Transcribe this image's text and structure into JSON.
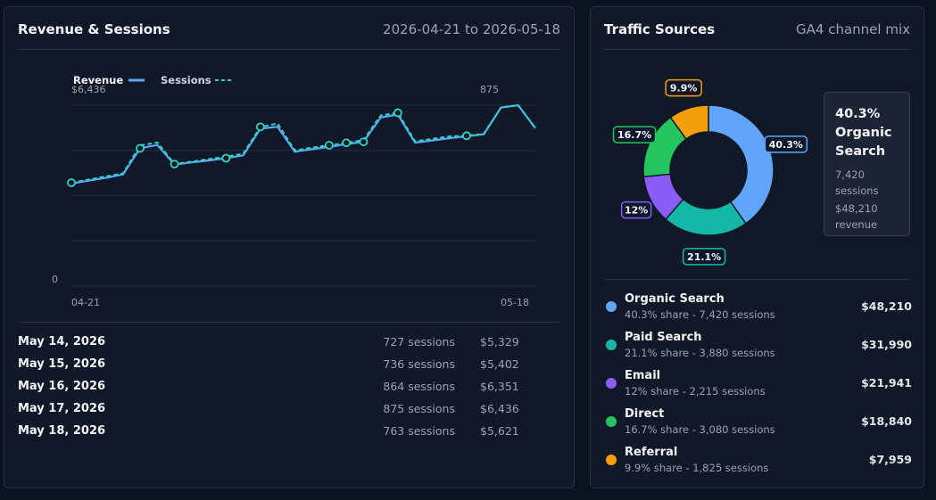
{
  "revenue_panel": {
    "title": "Revenue & Sessions",
    "date_range": "2026-04-21 to 2026-05-18",
    "legend": {
      "revenue": "Revenue",
      "sessions": "Sessions"
    },
    "rows": [
      {
        "date": "May 14, 2026",
        "sessions": "727 sessions",
        "revenue": "$5,329"
      },
      {
        "date": "May 15, 2026",
        "sessions": "736 sessions",
        "revenue": "$5,402"
      },
      {
        "date": "May 16, 2026",
        "sessions": "864 sessions",
        "revenue": "$6,351"
      },
      {
        "date": "May 17, 2026",
        "sessions": "875 sessions",
        "revenue": "$6,436"
      },
      {
        "date": "May 18, 2026",
        "sessions": "763 sessions",
        "revenue": "$5,621"
      }
    ]
  },
  "chart_data": {
    "type": "line",
    "x": [
      "04-21",
      "04-22",
      "04-23",
      "04-24",
      "04-25",
      "04-26",
      "04-27",
      "04-28",
      "04-29",
      "04-30",
      "05-01",
      "05-02",
      "05-03",
      "05-04",
      "05-05",
      "05-06",
      "05-07",
      "05-08",
      "05-09",
      "05-10",
      "05-11",
      "05-12",
      "05-13",
      "05-14",
      "05-15",
      "05-16",
      "05-17",
      "05-18"
    ],
    "x_tick_labels": [
      "04-21",
      "05-18"
    ],
    "y_tick_labels": [
      "0"
    ],
    "revenue_max_label": "$6,436",
    "sessions_max_label": "875",
    "series": [
      {
        "name": "Revenue",
        "color": "#60a5fa",
        "style": "solid",
        "values": [
          3650,
          3750,
          3850,
          3970,
          4900,
          5020,
          4320,
          4400,
          4470,
          4550,
          4650,
          5600,
          5670,
          4780,
          4870,
          4950,
          5050,
          5130,
          6000,
          6100,
          5100,
          5180,
          5260,
          5329,
          5402,
          6351,
          6436,
          5621
        ]
      },
      {
        "name": "Sessions",
        "color": "#2dd4bf",
        "style": "dashed",
        "values": [
          500,
          515,
          530,
          545,
          680,
          695,
          590,
          602,
          614,
          626,
          640,
          770,
          786,
          656,
          670,
          681,
          693,
          706,
          826,
          838,
          700,
          712,
          724,
          727,
          736,
          864,
          875,
          763
        ]
      }
    ],
    "markers": {
      "Sessions": [
        0,
        6,
        11,
        15,
        16,
        19,
        23
      ],
      "Revenue": [
        4,
        9,
        17
      ]
    },
    "grid": true,
    "gridlines": 5
  },
  "traffic_panel": {
    "title": "Traffic Sources",
    "subtitle": "GA4 channel mix",
    "tooltip": {
      "title": "40.3% Organic Search",
      "sessions": "7,420 sessions",
      "revenue": "$48,210 revenue"
    },
    "sources": [
      {
        "name": "Organic Search",
        "pct": 40.3,
        "label": "40.3%",
        "meta": "40.3% share - 7,420 sessions",
        "revenue": "$48,210",
        "color": "#60a5fa"
      },
      {
        "name": "Paid Search",
        "pct": 21.1,
        "label": "21.1%",
        "meta": "21.1% share - 3,880 sessions",
        "revenue": "$31,990",
        "color": "#14b8a6"
      },
      {
        "name": "Email",
        "pct": 12,
        "label": "12%",
        "meta": "12% share - 2,215 sessions",
        "revenue": "$21,941",
        "color": "#8b5cf6"
      },
      {
        "name": "Direct",
        "pct": 16.7,
        "label": "16.7%",
        "meta": "16.7% share - 3,080 sessions",
        "revenue": "$18,840",
        "color": "#22c55e"
      },
      {
        "name": "Referral",
        "pct": 9.9,
        "label": "9.9%",
        "meta": "9.9% share - 1,825 sessions",
        "revenue": "$7,959",
        "color": "#f59e0b"
      }
    ]
  }
}
